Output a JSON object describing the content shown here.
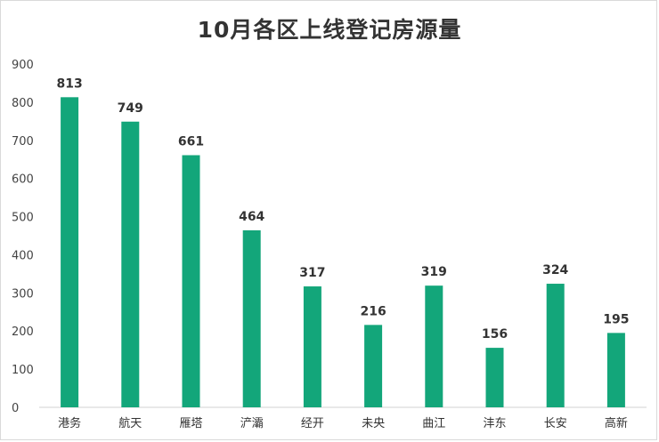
{
  "chart_data": {
    "type": "bar",
    "title": "10月各区上线登记房源量",
    "xlabel": "",
    "ylabel": "",
    "ylim": [
      0,
      900
    ],
    "yticks": [
      0,
      100,
      200,
      300,
      400,
      500,
      600,
      700,
      800,
      900
    ],
    "categories": [
      "港务",
      "航天",
      "雁塔",
      "浐灞",
      "经开",
      "未央",
      "曲江",
      "沣东",
      "长安",
      "高新"
    ],
    "values": [
      813,
      749,
      661,
      464,
      317,
      216,
      319,
      156,
      324,
      195
    ],
    "bar_color": "#13a67a",
    "grid": false,
    "legend": "none"
  }
}
